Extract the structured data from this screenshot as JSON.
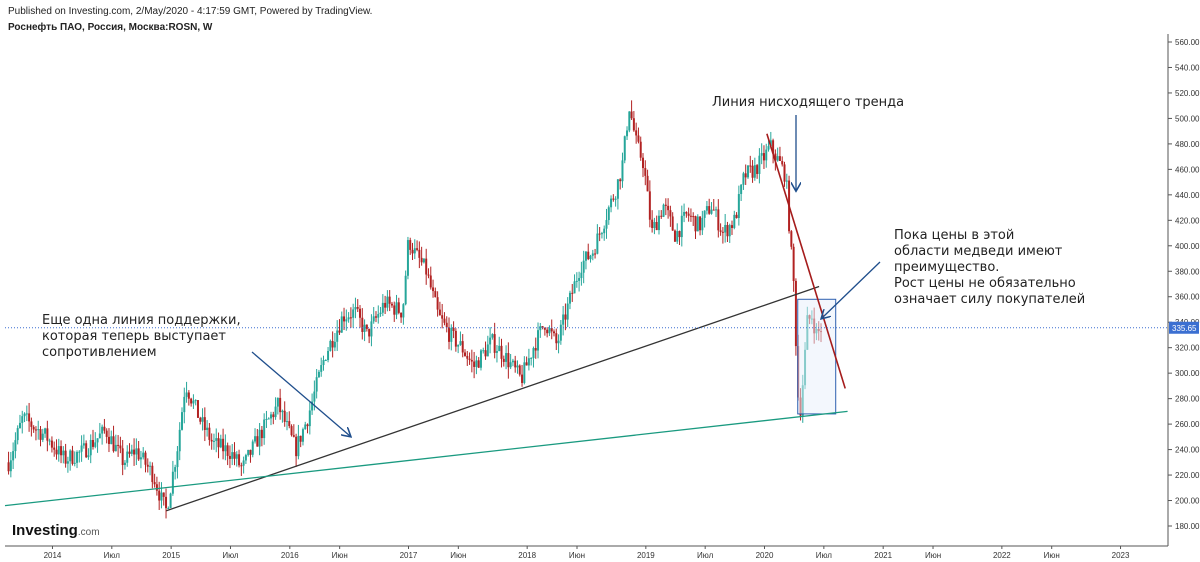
{
  "header": {
    "published": "Published on Investing.com, 2/May/2020 - 4:17:59 GMT, Powered by TradingView.",
    "symbol": "Роснефть ПАО, Россия, Москва:ROSN, W"
  },
  "logo": {
    "brand": "Investing",
    "suffix": ".com"
  },
  "annotations": {
    "support_line": [
      "Еще одна линия поддержки,",
      "которая теперь выступает",
      "сопротивлением"
    ],
    "downtrend": [
      "Линия нисходящего тренда"
    ],
    "bears": [
      "Пока цены в этой",
      "области медведи имеют",
      "преимущество.",
      "Рост цены не обязательно",
      "означает силу покупателей"
    ]
  },
  "colors": {
    "up": "#26a69a",
    "down": "#b22222",
    "trend_red": "#a51c1c",
    "support_dark": "#333333",
    "support_teal": "#1a9a80",
    "arrow": "#1f4e8c",
    "price_line": "#3b6fd1",
    "price_label_bg": "#3b6fd1",
    "box": "#2d5fb0",
    "box_fill": "#e8f0fb"
  },
  "chart_data": {
    "type": "candlestick",
    "title": "Роснефть ПАО, Россия, Москва:ROSN, W",
    "timeframe": "W",
    "x_labels": [
      "2014",
      "Июл",
      "2015",
      "Июл",
      "2016",
      "Июн",
      "2017",
      "Июн",
      "2018",
      "Июн",
      "2019",
      "Июл",
      "2020",
      "Июл",
      "2021",
      "Июн",
      "2022",
      "Июн",
      "2023"
    ],
    "x_range": [
      2013.6,
      2023.4
    ],
    "y_ticks": [
      180,
      200,
      220,
      240,
      260,
      280,
      300,
      320,
      340,
      360,
      380,
      400,
      420,
      440,
      460,
      480,
      500,
      520,
      540,
      560
    ],
    "ylim": [
      170,
      565
    ],
    "current_price": 335.65,
    "current_price_label": "335.65",
    "price_path": [
      [
        2013.63,
        230
      ],
      [
        2013.75,
        265
      ],
      [
        2013.95,
        250
      ],
      [
        2014.1,
        232
      ],
      [
        2014.25,
        238
      ],
      [
        2014.45,
        255
      ],
      [
        2014.6,
        230
      ],
      [
        2014.7,
        240
      ],
      [
        2014.85,
        220
      ],
      [
        2014.92,
        200
      ],
      [
        2014.96,
        192
      ],
      [
        2015.05,
        240
      ],
      [
        2015.12,
        292
      ],
      [
        2015.25,
        262
      ],
      [
        2015.35,
        245
      ],
      [
        2015.5,
        238
      ],
      [
        2015.6,
        225
      ],
      [
        2015.75,
        252
      ],
      [
        2015.9,
        275
      ],
      [
        2016.05,
        240
      ],
      [
        2016.15,
        265
      ],
      [
        2016.3,
        315
      ],
      [
        2016.45,
        345
      ],
      [
        2016.55,
        348
      ],
      [
        2016.65,
        330
      ],
      [
        2016.8,
        355
      ],
      [
        2016.95,
        348
      ],
      [
        2017.0,
        405
      ],
      [
        2017.05,
        395
      ],
      [
        2017.15,
        380
      ],
      [
        2017.25,
        345
      ],
      [
        2017.35,
        330
      ],
      [
        2017.45,
        320
      ],
      [
        2017.55,
        305
      ],
      [
        2017.7,
        325
      ],
      [
        2017.8,
        315
      ],
      [
        2017.95,
        295
      ],
      [
        2018.05,
        320
      ],
      [
        2018.15,
        340
      ],
      [
        2018.25,
        322
      ],
      [
        2018.32,
        345
      ],
      [
        2018.45,
        385
      ],
      [
        2018.55,
        395
      ],
      [
        2018.65,
        420
      ],
      [
        2018.75,
        445
      ],
      [
        2018.8,
        462
      ],
      [
        2018.86,
        510
      ],
      [
        2018.92,
        480
      ],
      [
        2018.98,
        465
      ],
      [
        2019.05,
        410
      ],
      [
        2019.15,
        432
      ],
      [
        2019.25,
        408
      ],
      [
        2019.35,
        425
      ],
      [
        2019.45,
        415
      ],
      [
        2019.55,
        432
      ],
      [
        2019.65,
        410
      ],
      [
        2019.75,
        420
      ],
      [
        2019.83,
        455
      ],
      [
        2019.92,
        460
      ],
      [
        2020.0,
        470
      ],
      [
        2020.05,
        478
      ],
      [
        2020.12,
        466
      ],
      [
        2020.18,
        455
      ],
      [
        2020.22,
        400
      ],
      [
        2020.25,
        365
      ],
      [
        2020.28,
        285
      ],
      [
        2020.3,
        270
      ],
      [
        2020.33,
        300
      ],
      [
        2020.36,
        340
      ],
      [
        2020.4,
        345
      ],
      [
        2020.44,
        330
      ],
      [
        2020.48,
        336
      ]
    ],
    "trendlines": [
      {
        "name": "support_dark",
        "x": [
          2014.96,
          2020.46
        ],
        "y": [
          192,
          368
        ]
      },
      {
        "name": "support_teal",
        "x": [
          2013.6,
          2020.7
        ],
        "y": [
          196,
          270
        ]
      },
      {
        "name": "downtrend",
        "x": [
          2020.02,
          2020.68
        ],
        "y": [
          488,
          288
        ]
      }
    ],
    "box": {
      "x": [
        2020.28,
        2020.6
      ],
      "y": [
        268,
        358
      ]
    },
    "grid": false
  }
}
